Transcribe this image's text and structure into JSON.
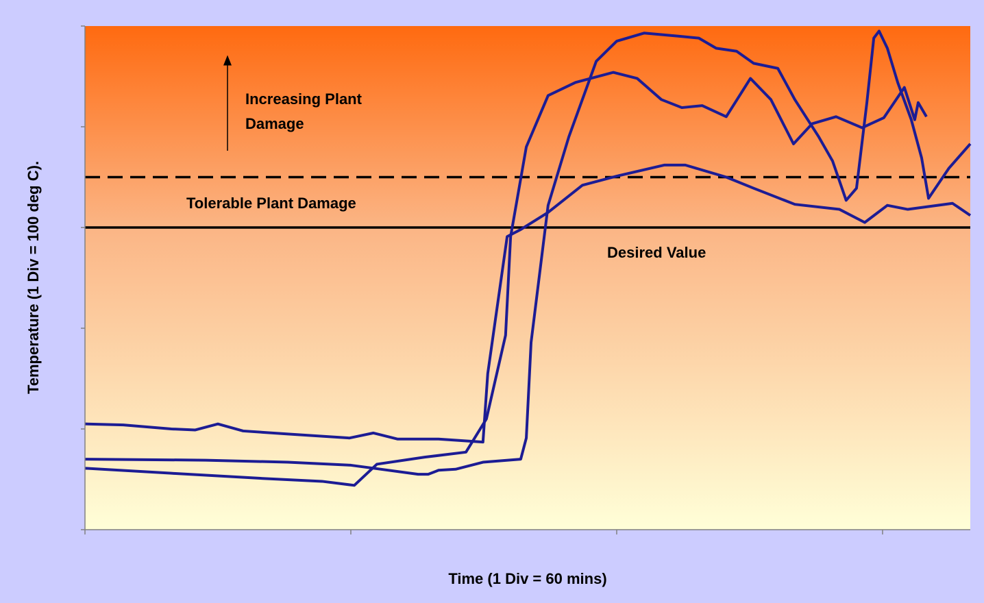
{
  "chart_data": {
    "type": "line",
    "x_label": "Time (1 Div = 60 mins)",
    "y_label": "Temperature (1 Div = 100 deg C).",
    "xlim": [
      0,
      3.33
    ],
    "xticks": [
      0,
      1,
      2,
      3
    ],
    "ylim": [
      0,
      5
    ],
    "yticks": [
      0,
      1,
      2,
      3,
      4,
      5
    ],
    "grid": false,
    "background_gradient": [
      "#ff6a10",
      "#fbb585",
      "#ffffd8"
    ],
    "reference_lines": [
      {
        "value": 3.5,
        "style": "dashed",
        "color": "#000000"
      },
      {
        "value": 3.0,
        "style": "solid",
        "color": "#000000"
      }
    ],
    "annotations": [
      {
        "lines": [
          "Increasing Plant",
          "Damage"
        ]
      },
      {
        "lines": [
          "Tolerable Plant Damage"
        ]
      },
      {
        "lines": [
          "Desired Value"
        ]
      }
    ],
    "series": [
      {
        "color": "#1c1c94",
        "x": [
          0,
          0.144,
          0.325,
          0.415,
          0.5,
          0.595,
          0.763,
          0.995,
          1.085,
          1.175,
          1.33,
          1.497,
          1.515,
          1.588,
          1.639,
          1.742,
          1.871,
          2.0,
          2.18,
          2.258,
          2.412,
          2.515,
          2.67,
          2.838,
          2.933,
          3.018,
          3.095,
          3.263,
          3.33
        ],
        "values": [
          1.05,
          1.04,
          1.0,
          0.99,
          1.05,
          0.98,
          0.95,
          0.91,
          0.96,
          0.9,
          0.9,
          0.87,
          1.55,
          2.91,
          2.98,
          3.15,
          3.42,
          3.51,
          3.62,
          3.62,
          3.5,
          3.39,
          3.23,
          3.18,
          3.05,
          3.22,
          3.18,
          3.24,
          3.12
        ]
      },
      {
        "color": "#1c1c94",
        "x": [
          0,
          0.454,
          0.763,
          1.0,
          1.085,
          1.253,
          1.291,
          1.33,
          1.394,
          1.497,
          1.639,
          1.66,
          1.678,
          1.742,
          1.82,
          1.923,
          2.0,
          2.103,
          2.232,
          2.309,
          2.374,
          2.451,
          2.515,
          2.606,
          2.67,
          2.76,
          2.812,
          2.863,
          2.902,
          2.941,
          2.967,
          2.987,
          3.018,
          3.057,
          3.108,
          3.147,
          3.173,
          3.25,
          3.33
        ],
        "values": [
          0.7,
          0.69,
          0.67,
          0.64,
          0.61,
          0.55,
          0.55,
          0.59,
          0.6,
          0.67,
          0.7,
          0.91,
          1.86,
          3.22,
          3.9,
          4.65,
          4.85,
          4.93,
          4.9,
          4.88,
          4.78,
          4.75,
          4.63,
          4.58,
          4.27,
          3.9,
          3.66,
          3.27,
          3.39,
          4.24,
          4.88,
          4.95,
          4.78,
          4.44,
          4.07,
          3.69,
          3.29,
          3.59,
          3.83
        ]
      },
      {
        "color": "#1c1c94",
        "x": [
          0,
          0.325,
          0.66,
          0.892,
          1.013,
          1.098,
          1.278,
          1.433,
          1.51,
          1.582,
          1.601,
          1.66,
          1.742,
          1.845,
          1.987,
          2.077,
          2.168,
          2.245,
          2.322,
          2.412,
          2.503,
          2.58,
          2.665,
          2.735,
          2.825,
          2.923,
          3.005,
          3.082,
          3.121,
          3.134,
          3.165
        ],
        "values": [
          0.61,
          0.56,
          0.51,
          0.48,
          0.44,
          0.65,
          0.72,
          0.77,
          1.1,
          1.93,
          2.91,
          3.8,
          4.31,
          4.44,
          4.54,
          4.48,
          4.27,
          4.19,
          4.21,
          4.1,
          4.48,
          4.27,
          3.83,
          4.03,
          4.1,
          3.99,
          4.09,
          4.39,
          4.07,
          4.24,
          4.1
        ]
      }
    ]
  }
}
